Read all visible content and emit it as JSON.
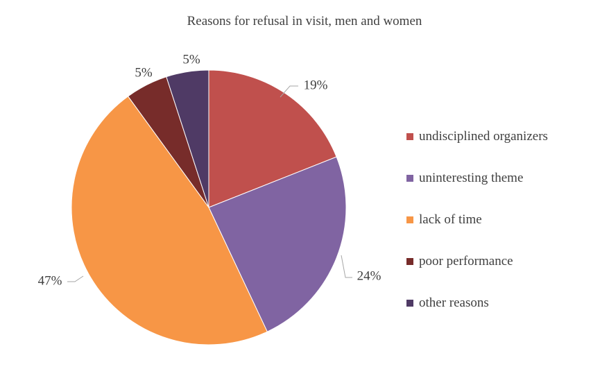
{
  "chart_data": {
    "type": "pie",
    "title": "Reasons for refusal in visit, men and women",
    "legend_position": "right",
    "slices": [
      {
        "label": "undisciplined organizers",
        "value": 19,
        "value_label": "19%",
        "color": "#C0504D"
      },
      {
        "label": "uninteresting theme",
        "value": 24,
        "value_label": "24%",
        "color": "#8064A2"
      },
      {
        "label": "lack of time",
        "value": 47,
        "value_label": "47%",
        "color": "#F79646"
      },
      {
        "label": "poor performance",
        "value": 5,
        "value_label": "5%",
        "color": "#772C2A"
      },
      {
        "label": "other reasons",
        "value": 5,
        "value_label": "5%",
        "color": "#4F3A65"
      }
    ]
  }
}
